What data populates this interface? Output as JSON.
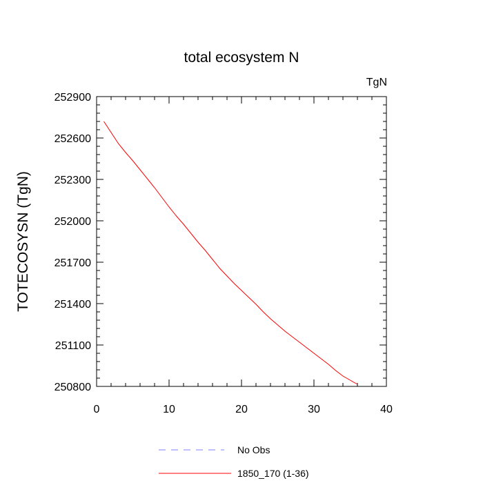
{
  "chart_data": {
    "type": "line",
    "title": "total ecosystem N",
    "units_label": "TgN",
    "xlabel": "",
    "ylabel": "TOTECOSYSN  (TgN)",
    "xlim": [
      0,
      40
    ],
    "ylim": [
      250800,
      252900
    ],
    "xticks": [
      0,
      10,
      20,
      30,
      40
    ],
    "xtick_labels": [
      "0",
      "10",
      "20",
      "30",
      "40"
    ],
    "yticks": [
      250800,
      251100,
      251400,
      251700,
      252000,
      252300,
      252600,
      252900
    ],
    "ytick_labels": [
      "250800",
      "251100",
      "251400",
      "251700",
      "252000",
      "252300",
      "252600",
      "252900"
    ],
    "grid": false,
    "legend_position": "bottom",
    "series": [
      {
        "name": "No Obs",
        "style": "dashed",
        "color": "#8080ff",
        "x": [],
        "y": []
      },
      {
        "name": "1850_170 (1-36)",
        "style": "solid",
        "color": "#ff0000",
        "x": [
          1,
          2,
          3,
          4,
          5,
          6,
          7,
          8,
          9,
          10,
          11,
          12,
          13,
          14,
          15,
          16,
          17,
          18,
          19,
          20,
          21,
          22,
          23,
          24,
          25,
          26,
          27,
          28,
          29,
          30,
          31,
          32,
          33,
          34,
          35,
          36
        ],
        "y": [
          252720,
          252640,
          252560,
          252495,
          252435,
          252370,
          252305,
          252240,
          252170,
          252100,
          252035,
          251975,
          251910,
          251845,
          251785,
          251720,
          251655,
          251600,
          251545,
          251495,
          251445,
          251395,
          251340,
          251290,
          251245,
          251200,
          251160,
          251120,
          251080,
          251040,
          251000,
          250960,
          250915,
          250875,
          250845,
          250815
        ]
      }
    ]
  }
}
